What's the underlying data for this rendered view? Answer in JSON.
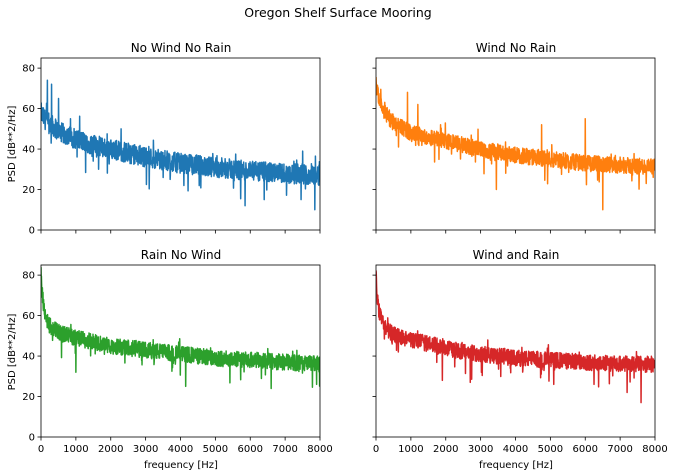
{
  "figure": {
    "suptitle": "Oregon Shelf Surface Mooring"
  },
  "chart_data": [
    {
      "type": "line",
      "title": "No Wind No Rain",
      "xlabel": "",
      "ylabel": "PSD [dB**2/Hz]",
      "xlim": [
        0,
        8000
      ],
      "ylim": [
        0,
        85
      ],
      "xticks": [
        0,
        1000,
        2000,
        3000,
        4000,
        5000,
        6000,
        7000,
        8000
      ],
      "yticks": [
        0,
        20,
        40,
        60,
        80
      ],
      "show_xticklabels": false,
      "show_yticklabels": true,
      "grid": false,
      "series": [
        {
          "color": "#1f77b4",
          "x": [
            0,
            50,
            100,
            200,
            300,
            500,
            700,
            1000,
            1500,
            2000,
            2500,
            3000,
            4000,
            5000,
            6000,
            7000,
            8000
          ],
          "y": [
            58,
            56,
            55,
            53,
            52,
            49,
            47,
            45,
            42,
            40,
            38,
            36,
            33,
            31,
            29,
            28,
            27
          ],
          "noise_amplitude": 5,
          "spikes": [
            [
              180,
              74
            ],
            [
              300,
              72
            ],
            [
              500,
              65
            ],
            [
              2300,
              50
            ],
            [
              7500,
              39
            ],
            [
              1650,
              30
            ],
            [
              3700,
              25
            ],
            [
              5850,
              12
            ],
            [
              6400,
              15
            ],
            [
              7850,
              10
            ],
            [
              4100,
              22
            ]
          ]
        }
      ]
    },
    {
      "type": "line",
      "title": "Wind No Rain",
      "xlabel": "",
      "ylabel": "",
      "xlim": [
        0,
        8000
      ],
      "ylim": [
        0,
        85
      ],
      "xticks": [
        0,
        1000,
        2000,
        3000,
        4000,
        5000,
        6000,
        7000,
        8000
      ],
      "yticks": [
        0,
        20,
        40,
        60,
        80
      ],
      "show_xticklabels": false,
      "show_yticklabels": false,
      "grid": false,
      "series": [
        {
          "color": "#ff7f0e",
          "x": [
            0,
            50,
            100,
            200,
            300,
            500,
            700,
            1000,
            1500,
            2000,
            2500,
            3000,
            4000,
            5000,
            6000,
            7000,
            8000
          ],
          "y": [
            74,
            67,
            63,
            60,
            57,
            53,
            51,
            48,
            46,
            44,
            42,
            40,
            37,
            35,
            33,
            32,
            31
          ],
          "noise_amplitude": 4,
          "spikes": [
            [
              900,
              68
            ],
            [
              1200,
              62
            ],
            [
              1850,
              52
            ],
            [
              4750,
              52
            ],
            [
              6000,
              55
            ],
            [
              3450,
              20
            ],
            [
              6500,
              10
            ],
            [
              7750,
              23
            ],
            [
              7950,
              26
            ]
          ]
        }
      ]
    },
    {
      "type": "line",
      "title": "Rain No Wind",
      "xlabel": "frequency [Hz]",
      "ylabel": "PSD [dB**2/Hz]",
      "xlim": [
        0,
        8000
      ],
      "ylim": [
        0,
        85
      ],
      "xticks": [
        0,
        1000,
        2000,
        3000,
        4000,
        5000,
        6000,
        7000,
        8000
      ],
      "yticks": [
        0,
        20,
        40,
        60,
        80
      ],
      "show_xticklabels": true,
      "show_yticklabels": true,
      "grid": false,
      "series": [
        {
          "color": "#2ca02c",
          "x": [
            0,
            30,
            80,
            150,
            250,
            400,
            600,
            1000,
            1500,
            2000,
            2500,
            3000,
            4000,
            5000,
            6000,
            7000,
            8000
          ],
          "y": [
            82,
            72,
            64,
            58,
            55,
            53,
            51,
            49,
            47,
            45,
            44,
            43,
            41,
            39,
            38,
            37,
            36
          ],
          "noise_amplitude": 4,
          "spikes": [
            [
              4150,
              25
            ],
            [
              6600,
              24
            ],
            [
              7900,
              26
            ],
            [
              1000,
              32
            ]
          ]
        }
      ]
    },
    {
      "type": "line",
      "title": "Wind and Rain",
      "xlabel": "frequency [Hz]",
      "ylabel": "",
      "xlim": [
        0,
        8000
      ],
      "ylim": [
        0,
        85
      ],
      "xticks": [
        0,
        1000,
        2000,
        3000,
        4000,
        5000,
        6000,
        7000,
        8000
      ],
      "yticks": [
        0,
        20,
        40,
        60,
        80
      ],
      "show_xticklabels": true,
      "show_yticklabels": false,
      "grid": false,
      "series": [
        {
          "color": "#d62728",
          "x": [
            0,
            30,
            80,
            150,
            250,
            400,
            600,
            1000,
            1500,
            2000,
            2500,
            3000,
            4000,
            5000,
            6000,
            7000,
            8000
          ],
          "y": [
            80,
            70,
            63,
            58,
            55,
            52,
            50,
            48,
            46,
            44,
            42,
            41,
            39,
            38,
            37,
            36,
            36
          ],
          "noise_amplitude": 4,
          "spikes": [
            [
              7600,
              17
            ],
            [
              7200,
              22
            ],
            [
              5100,
              26
            ],
            [
              6250,
              26
            ],
            [
              2700,
              27
            ],
            [
              1900,
              28
            ]
          ]
        }
      ]
    }
  ]
}
